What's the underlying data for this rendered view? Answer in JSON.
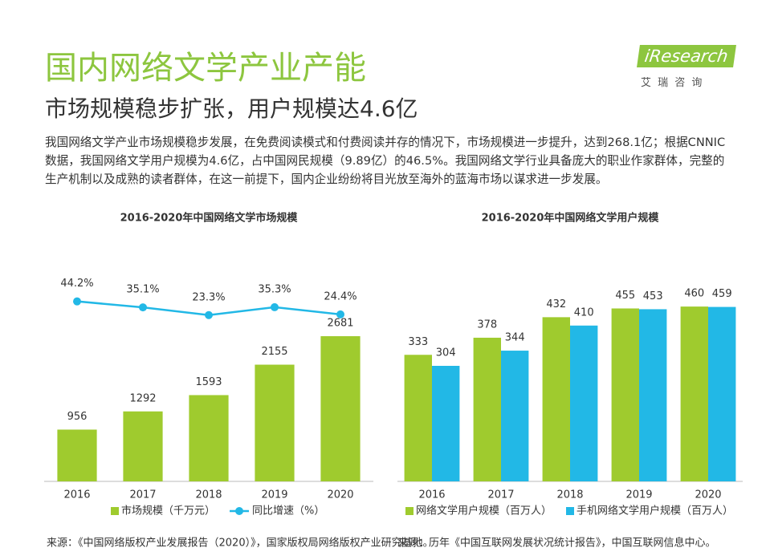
{
  "header": {
    "title": "国内网络文学产业产能",
    "subtitle": "市场规模稳步扩张，用户规模达4.6亿",
    "body": "我国网络文学产业市场规模稳步发展，在免费阅读模式和付费阅读并存的情况下，市场规模进一步提升，达到268.1亿；根据CNNIC数据，我国网络文学用户规模为4.6亿，占中国网民规模（9.89亿）的46.5%。我国网络文学行业具备庞大的职业作家群体，完整的生产机制以及成熟的读者群体，在这一前提下，国内企业纷纷将目光放至海外的蓝海市场以谋求进一步发展。",
    "logo": "iResearch",
    "logo_sub": "艾 瑞 咨 询"
  },
  "chart_data": [
    {
      "type": "bar",
      "title": "2016-2020年中国网络文学市场规模",
      "categories": [
        "2016",
        "2017",
        "2018",
        "2019",
        "2020"
      ],
      "ylim": [
        0,
        4000
      ],
      "y2lim": [
        -230,
        100
      ],
      "source": "来源：《中国网络版权产业发展报告（2020）》，国家版权局网络版权产业研究基地。",
      "series": [
        {
          "name": "市场规模（千万元）",
          "color": "#9fcb2e",
          "values": [
            956,
            1292,
            1593,
            2155,
            2681
          ]
        },
        {
          "name": "同比增速（%）",
          "type": "line",
          "axis": "y2",
          "color": "#22b8e6",
          "values": [
            44.2,
            35.1,
            23.3,
            35.3,
            24.4
          ],
          "value_labels": [
            "44.2%",
            "35.1%",
            "23.3%",
            "35.3%",
            "24.4%"
          ]
        }
      ]
    },
    {
      "type": "bar",
      "title": "2016-2020年中国网络文学用户规模",
      "categories": [
        "2016",
        "2017",
        "2018",
        "2019",
        "2020"
      ],
      "ylim": [
        0,
        570
      ],
      "source": "来源：历年《中国互联网发展状况统计报告》，中国互联网信息中心。",
      "series": [
        {
          "name": "网络文学用户规模（百万人）",
          "color": "#9fcb2e",
          "values": [
            333,
            378,
            432,
            455,
            460
          ]
        },
        {
          "name": "手机网络文学用户规模（百万人）",
          "color": "#22b8e6",
          "values": [
            304,
            344,
            410,
            453,
            459
          ]
        }
      ]
    }
  ]
}
